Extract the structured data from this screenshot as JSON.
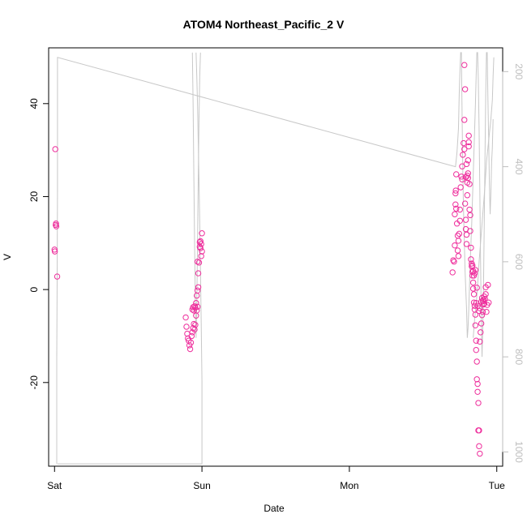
{
  "chart_data": {
    "type": "scatter",
    "title": "ATOM4 Northeast_Pacific_2 V",
    "xlabel": "Date",
    "ylabel": "V",
    "x_ticks": [
      {
        "label": "Sat",
        "value": 0
      },
      {
        "label": "Sun",
        "value": 1
      },
      {
        "label": "Mon",
        "value": 2
      },
      {
        "label": "Tue",
        "value": 3
      }
    ],
    "xlim": [
      -0.04,
      3.04
    ],
    "y_ticks": [
      -20,
      0,
      20,
      40
    ],
    "ylim": [
      -38,
      52
    ],
    "y2_ticks": [
      200,
      400,
      600,
      800,
      1000
    ],
    "y2lim": [
      1030,
      150
    ],
    "grid": false,
    "colors": {
      "points": "#ee2e9c",
      "line": "#c8c8c8",
      "axis": "#000000",
      "secondary_axis": "#bebebe"
    },
    "series": [
      {
        "kind": "points",
        "points": [
          [
            0.005,
            30.2
          ],
          [
            0.01,
            14.2
          ],
          [
            0.012,
            13.6
          ],
          [
            0.008,
            13.9
          ],
          [
            0.0,
            8.6
          ],
          [
            0.002,
            8.2
          ],
          [
            0.018,
            2.8
          ],
          [
            0.89,
            -6.0
          ],
          [
            0.895,
            -8.0
          ],
          [
            0.9,
            -9.5
          ],
          [
            0.905,
            -10.5
          ],
          [
            0.91,
            -11.0
          ],
          [
            0.915,
            -12.0
          ],
          [
            0.92,
            -12.8
          ],
          [
            0.925,
            -11.4
          ],
          [
            0.93,
            -10.0
          ],
          [
            0.935,
            -9.2
          ],
          [
            0.94,
            -8.3
          ],
          [
            0.945,
            -7.4
          ],
          [
            0.95,
            -8.6
          ],
          [
            0.955,
            -7.6
          ],
          [
            0.96,
            -5.6
          ],
          [
            0.965,
            -4.5
          ],
          [
            0.97,
            -3.7
          ],
          [
            0.935,
            -4.3
          ],
          [
            0.94,
            -3.8
          ],
          [
            0.945,
            -4.5
          ],
          [
            0.95,
            -3.6
          ],
          [
            0.955,
            -3.9
          ],
          [
            0.96,
            -2.9
          ],
          [
            0.965,
            -1.3
          ],
          [
            0.97,
            -0.2
          ],
          [
            0.975,
            0.5
          ],
          [
            0.975,
            3.5
          ],
          [
            0.97,
            6.0
          ],
          [
            0.98,
            5.8
          ],
          [
            0.985,
            9.2
          ],
          [
            0.99,
            10.4
          ],
          [
            0.995,
            9.8
          ],
          [
            0.99,
            8.9
          ],
          [
            0.995,
            7.2
          ],
          [
            1.0,
            8.2
          ],
          [
            1.0,
            12.1
          ],
          [
            0.985,
            10.2
          ],
          [
            2.7,
            3.7
          ],
          [
            2.705,
            6.3
          ],
          [
            2.71,
            6.0
          ],
          [
            2.715,
            9.5
          ],
          [
            2.715,
            16.2
          ],
          [
            2.72,
            18.3
          ],
          [
            2.72,
            20.7
          ],
          [
            2.722,
            21.3
          ],
          [
            2.725,
            24.8
          ],
          [
            2.725,
            17.4
          ],
          [
            2.73,
            14.2
          ],
          [
            2.735,
            11.6
          ],
          [
            2.735,
            8.4
          ],
          [
            2.74,
            7.2
          ],
          [
            2.74,
            10.5
          ],
          [
            2.745,
            12.0
          ],
          [
            2.75,
            14.8
          ],
          [
            2.75,
            17.2
          ],
          [
            2.755,
            22.0
          ],
          [
            2.76,
            24.3
          ],
          [
            2.765,
            26.5
          ],
          [
            2.765,
            23.7
          ],
          [
            2.77,
            29.0
          ],
          [
            2.775,
            31.5
          ],
          [
            2.78,
            30.2
          ],
          [
            2.78,
            36.5
          ],
          [
            2.785,
            43.1
          ],
          [
            2.78,
            48.3
          ],
          [
            2.785,
            18.5
          ],
          [
            2.79,
            15.0
          ],
          [
            2.79,
            13.0
          ],
          [
            2.795,
            11.8
          ],
          [
            2.795,
            9.8
          ],
          [
            2.8,
            20.3
          ],
          [
            2.8,
            23.0
          ],
          [
            2.805,
            25.0
          ],
          [
            2.805,
            27.8
          ],
          [
            2.81,
            30.8
          ],
          [
            2.81,
            31.7
          ],
          [
            2.81,
            33.1
          ],
          [
            2.815,
            22.7
          ],
          [
            2.815,
            17.2
          ],
          [
            2.82,
            16.0
          ],
          [
            2.82,
            12.6
          ],
          [
            2.825,
            9.0
          ],
          [
            2.825,
            6.5
          ],
          [
            2.83,
            5.6
          ],
          [
            2.83,
            5.0
          ],
          [
            2.835,
            3.8
          ],
          [
            2.835,
            3.0
          ],
          [
            2.84,
            1.5
          ],
          [
            2.84,
            0.2
          ],
          [
            2.845,
            -1.0
          ],
          [
            2.845,
            -2.8
          ],
          [
            2.85,
            -3.5
          ],
          [
            2.85,
            -4.3
          ],
          [
            2.855,
            -5.4
          ],
          [
            2.855,
            -7.7
          ],
          [
            2.86,
            -11.0
          ],
          [
            2.86,
            -13.0
          ],
          [
            2.865,
            -15.5
          ],
          [
            2.865,
            -19.3
          ],
          [
            2.87,
            -20.3
          ],
          [
            2.87,
            -22.0
          ],
          [
            2.875,
            -24.4
          ],
          [
            2.875,
            -30.3
          ],
          [
            2.88,
            -30.3
          ],
          [
            2.88,
            -33.7
          ],
          [
            2.885,
            -35.3
          ],
          [
            2.885,
            -11.2
          ],
          [
            2.89,
            -9.2
          ],
          [
            2.895,
            -7.3
          ],
          [
            2.9,
            -5.5
          ],
          [
            2.905,
            -4.8
          ],
          [
            2.91,
            -3.2
          ],
          [
            2.915,
            -3.0
          ],
          [
            2.92,
            -2.0
          ],
          [
            2.925,
            -1.0
          ],
          [
            2.925,
            0.5
          ],
          [
            2.93,
            -4.8
          ],
          [
            2.935,
            -3.3
          ],
          [
            2.94,
            1.0
          ],
          [
            2.945,
            -2.8
          ],
          [
            2.905,
            -2.5
          ],
          [
            2.91,
            -2.2
          ],
          [
            2.915,
            -1.5
          ],
          [
            2.895,
            -2.6
          ],
          [
            2.9,
            -1.8
          ],
          [
            2.885,
            -4.0
          ],
          [
            2.88,
            -4.6
          ],
          [
            2.87,
            -3.5
          ],
          [
            2.86,
            -2.9
          ],
          [
            2.865,
            0.4
          ],
          [
            2.855,
            4.2
          ],
          [
            2.85,
            3.5
          ],
          [
            2.845,
            3.0
          ],
          [
            2.84,
            4.0
          ],
          [
            2.835,
            5.2
          ],
          [
            2.8,
            24.5
          ],
          [
            2.805,
            24.0
          ],
          [
            2.79,
            24.2
          ],
          [
            2.795,
            27.0
          ]
        ]
      },
      {
        "kind": "line",
        "name": "",
        "axis": "right",
        "points": [
          [
            0.015,
            1025
          ],
          [
            0.015,
            800
          ],
          [
            0.018,
            620
          ],
          [
            0.02,
            450
          ],
          [
            0.02,
            170
          ],
          [
            2.72,
            400
          ],
          [
            2.73,
            370
          ],
          [
            2.74,
            320
          ],
          [
            2.745,
            250
          ],
          [
            2.75,
            200
          ],
          [
            2.755,
            160
          ],
          [
            2.76,
            160
          ],
          [
            2.765,
            300
          ],
          [
            2.77,
            420
          ],
          [
            2.775,
            500
          ],
          [
            2.78,
            560
          ],
          [
            2.785,
            620
          ],
          [
            2.79,
            660
          ],
          [
            2.795,
            700
          ],
          [
            2.8,
            760
          ],
          [
            2.805,
            740
          ],
          [
            2.81,
            700
          ],
          [
            2.815,
            650
          ],
          [
            2.82,
            600
          ],
          [
            2.825,
            560
          ],
          [
            2.83,
            520
          ],
          [
            2.835,
            470
          ],
          [
            2.84,
            420
          ],
          [
            2.845,
            370
          ],
          [
            2.85,
            320
          ],
          [
            2.855,
            270
          ],
          [
            2.86,
            210
          ],
          [
            2.865,
            160
          ],
          [
            2.87,
            160
          ],
          [
            2.875,
            220
          ],
          [
            2.88,
            320
          ],
          [
            2.885,
            450
          ],
          [
            2.89,
            600
          ],
          [
            2.895,
            720
          ],
          [
            2.9,
            800
          ],
          [
            2.905,
            740
          ],
          [
            2.91,
            650
          ],
          [
            2.915,
            520
          ],
          [
            2.92,
            380
          ],
          [
            2.925,
            250
          ],
          [
            2.93,
            160
          ],
          [
            2.935,
            160
          ],
          [
            2.94,
            260
          ],
          [
            2.945,
            340
          ],
          [
            2.95,
            440
          ],
          [
            2.955,
            500
          ],
          [
            2.96,
            455
          ],
          [
            2.965,
            390
          ],
          [
            2.97,
            360
          ],
          [
            2.975,
            300
          ]
        ]
      }
    ]
  }
}
